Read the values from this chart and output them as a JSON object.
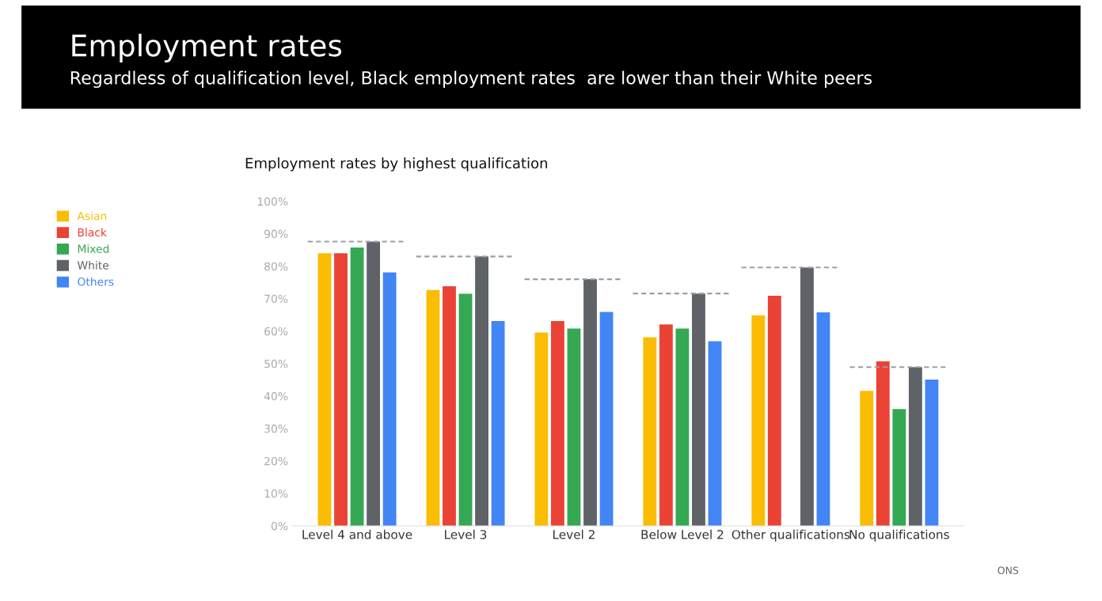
{
  "chart_data": {
    "type": "bar",
    "title": "Employment rates",
    "subtitle": "Regardless of qualification level, Black employment rates  are lower than their White peers",
    "annotations": [
      "Employment rates by highest qualification",
      "ONS"
    ],
    "categories": [
      "Level 4 and above",
      "Level 3",
      "Level 2",
      "Below Level 2",
      "Other qualifications",
      "No qualifications"
    ],
    "series": [
      {
        "name": "Asian",
        "color": "#fbbc04",
        "values": [
          84,
          72.7,
          59.6,
          58.1,
          64.9,
          41.6
        ]
      },
      {
        "name": "Black",
        "color": "#ea4335",
        "values": [
          84,
          73.8,
          63.1,
          62.1,
          70.9,
          50.7
        ]
      },
      {
        "name": "Mixed",
        "color": "#34a853",
        "values": [
          85.8,
          71.5,
          60.8,
          60.8,
          null,
          36.0
        ]
      },
      {
        "name": "White",
        "color": "#5f6368",
        "values": [
          87.6,
          83.0,
          76.0,
          71.6,
          79.6,
          48.9
        ]
      },
      {
        "name": "Others",
        "color": "#4285f4",
        "values": [
          78.1,
          63.1,
          65.9,
          56.9,
          65.8,
          45.1
        ]
      }
    ],
    "ref_lines": [
      {
        "axis": "y",
        "value": 87.6,
        "color": "#9aa0a6",
        "line_style": "dashed"
      },
      {
        "axis": "y",
        "value": 83.0,
        "color": "#9aa0a6",
        "line_style": "dashed"
      },
      {
        "axis": "y",
        "value": 76.0,
        "color": "#9aa0a6",
        "line_style": "dashed"
      },
      {
        "axis": "y",
        "value": 71.6,
        "color": "#9aa0a6",
        "line_style": "dashed"
      },
      {
        "axis": "y",
        "value": 79.6,
        "color": "#9aa0a6",
        "line_style": "dashed"
      },
      {
        "axis": "y",
        "value": 48.9,
        "color": "#9aa0a6",
        "line_style": "dashed"
      }
    ],
    "ylim": [
      0,
      100
    ],
    "yticks": [
      {
        "value": 0,
        "label": "0%"
      },
      {
        "value": 10,
        "label": "10%"
      },
      {
        "value": 20,
        "label": "20%"
      },
      {
        "value": 30,
        "label": "30%"
      },
      {
        "value": 40,
        "label": "40%"
      },
      {
        "value": 50,
        "label": "50%"
      },
      {
        "value": 60,
        "label": "60%"
      },
      {
        "value": 70,
        "label": "70%"
      },
      {
        "value": 80,
        "label": "80%"
      },
      {
        "value": 90,
        "label": "90%"
      },
      {
        "value": 100,
        "label": "100%"
      }
    ],
    "grid": false,
    "legend": "left"
  }
}
